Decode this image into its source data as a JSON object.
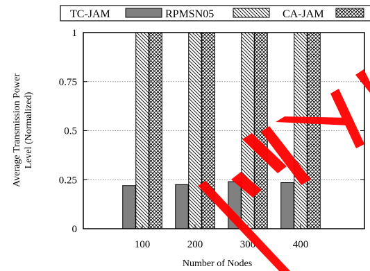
{
  "chart_data": {
    "type": "bar",
    "categories": [
      "100",
      "200",
      "300",
      "400"
    ],
    "series": [
      {
        "name": "TC-JAM",
        "values": [
          0.22,
          0.225,
          0.24,
          0.235
        ],
        "fill": "solid-gray"
      },
      {
        "name": "RPMSN05",
        "values": [
          1.0,
          1.0,
          1.0,
          1.0
        ],
        "fill": "diagonal-hatch"
      },
      {
        "name": "CA-JAM",
        "values": [
          1.0,
          1.0,
          1.0,
          1.0
        ],
        "fill": "crosshatch"
      }
    ],
    "xlabel": "Number of Nodes",
    "ylabel_lines": [
      "Average Transmission Power",
      "Level (Normalized)"
    ],
    "ylim": [
      0,
      1
    ],
    "yticks": [
      "0",
      "0.25",
      "0.5",
      "0.75",
      "1"
    ],
    "grid": "horizontal-dotted",
    "legend_position": "top",
    "colors": {
      "solid_bar": "#808080",
      "watermark": "#ff0000"
    }
  }
}
